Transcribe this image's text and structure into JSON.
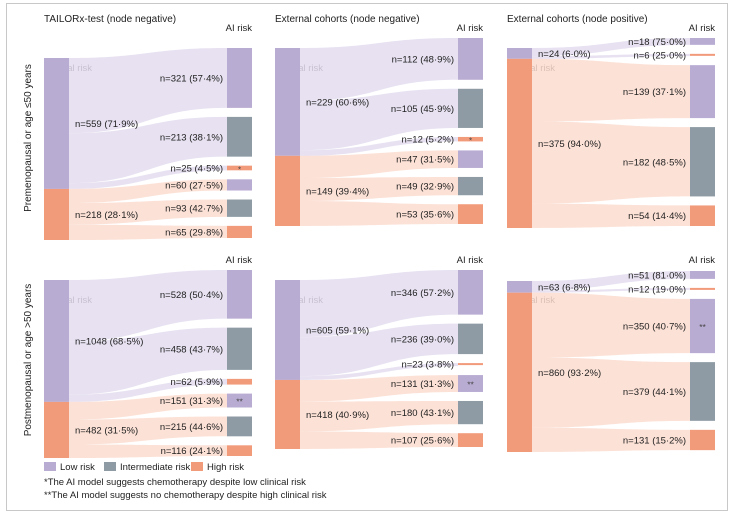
{
  "colors": {
    "low": "#b9acd3",
    "intermediate": "#8e9ba4",
    "high": "#f29b7b",
    "flow_low": "#e3dcee",
    "flow_high": "#fcdccf",
    "border": "#c8c8c8"
  },
  "labels": {
    "ai_risk": "AI risk",
    "clinical_risk": "Clinical risk",
    "row_top": "Premenopausal or age ≤50 years",
    "row_bottom": "Postmenopausal or age >50 years"
  },
  "legend": {
    "low": "Low risk",
    "intermediate": "Intermediate risk",
    "high": "High risk"
  },
  "footnotes": [
    "*The AI model suggests chemotherapy despite low clinical risk",
    "**The AI model suggests no chemotherapy despite high clinical risk"
  ],
  "chart_data": [
    {
      "type": "sankey",
      "title": "TAILORx-test (node negative)",
      "row": "Premenopausal or age ≤50 years",
      "clinical": [
        {
          "risk": "low",
          "label": "n=559 (71·9%)"
        },
        {
          "risk": "high",
          "label": "n=218 (28·1%)"
        }
      ],
      "flows": [
        {
          "from": "low",
          "to": "low",
          "n": 321,
          "label": "n=321 (57·4%)",
          "mark": ""
        },
        {
          "from": "low",
          "to": "intermediate",
          "n": 213,
          "label": "n=213 (38·1%)",
          "mark": ""
        },
        {
          "from": "low",
          "to": "high",
          "n": 25,
          "label": "n=25 (4·5%)",
          "mark": "*"
        },
        {
          "from": "high",
          "to": "low",
          "n": 60,
          "label": "n=60 (27·5%)",
          "mark": ""
        },
        {
          "from": "high",
          "to": "intermediate",
          "n": 93,
          "label": "n=93 (42·7%)",
          "mark": ""
        },
        {
          "from": "high",
          "to": "high",
          "n": 65,
          "label": "n=65 (29·8%)",
          "mark": ""
        }
      ]
    },
    {
      "type": "sankey",
      "title": "External cohorts (node negative)",
      "row": "Premenopausal or age ≤50 years",
      "clinical": [
        {
          "risk": "low",
          "label": "n=229 (60·6%)"
        },
        {
          "risk": "high",
          "label": "n=149 (39·4%)"
        }
      ],
      "flows": [
        {
          "from": "low",
          "to": "low",
          "n": 112,
          "label": "n=112 (48·9%)",
          "mark": ""
        },
        {
          "from": "low",
          "to": "intermediate",
          "n": 105,
          "label": "n=105 (45·9%)",
          "mark": ""
        },
        {
          "from": "low",
          "to": "high",
          "n": 12,
          "label": "n=12 (5·2%)",
          "mark": "*"
        },
        {
          "from": "high",
          "to": "low",
          "n": 47,
          "label": "n=47 (31·5%)",
          "mark": ""
        },
        {
          "from": "high",
          "to": "intermediate",
          "n": 49,
          "label": "n=49 (32·9%)",
          "mark": ""
        },
        {
          "from": "high",
          "to": "high",
          "n": 53,
          "label": "n=53 (35·6%)",
          "mark": ""
        }
      ]
    },
    {
      "type": "sankey",
      "title": "External cohorts (node positive)",
      "row": "Premenopausal or age ≤50 years",
      "clinical": [
        {
          "risk": "low",
          "label": "n=24 (6·0%)"
        },
        {
          "risk": "high",
          "label": "n=375 (94·0%)"
        }
      ],
      "flows": [
        {
          "from": "low",
          "to": "low",
          "n": 18,
          "label": "n=18 (75·0%)",
          "mark": ""
        },
        {
          "from": "low",
          "to": "high",
          "n": 6,
          "label": "n=6 (25·0%)",
          "mark": ""
        },
        {
          "from": "high",
          "to": "low",
          "n": 139,
          "label": "n=139 (37·1%)",
          "mark": ""
        },
        {
          "from": "high",
          "to": "intermediate",
          "n": 182,
          "label": "n=182 (48·5%)",
          "mark": ""
        },
        {
          "from": "high",
          "to": "high",
          "n": 54,
          "label": "n=54 (14·4%)",
          "mark": ""
        }
      ]
    },
    {
      "type": "sankey",
      "title": "",
      "row": "Postmenopausal or age >50 years",
      "clinical": [
        {
          "risk": "low",
          "label": "n=1048 (68·5%)"
        },
        {
          "risk": "high",
          "label": "n=482 (31·5%)"
        }
      ],
      "flows": [
        {
          "from": "low",
          "to": "low",
          "n": 528,
          "label": "n=528 (50·4%)",
          "mark": ""
        },
        {
          "from": "low",
          "to": "intermediate",
          "n": 458,
          "label": "n=458 (43·7%)",
          "mark": ""
        },
        {
          "from": "low",
          "to": "high",
          "n": 62,
          "label": "n=62 (5·9%)",
          "mark": ""
        },
        {
          "from": "high",
          "to": "low",
          "n": 151,
          "label": "n=151 (31·3%)",
          "mark": "**"
        },
        {
          "from": "high",
          "to": "intermediate",
          "n": 215,
          "label": "n=215 (44·6%)",
          "mark": ""
        },
        {
          "from": "high",
          "to": "high",
          "n": 116,
          "label": "n=116 (24·1%)",
          "mark": ""
        }
      ]
    },
    {
      "type": "sankey",
      "title": "",
      "row": "Postmenopausal or age >50 years",
      "clinical": [
        {
          "risk": "low",
          "label": "n=605 (59·1%)"
        },
        {
          "risk": "high",
          "label": "n=418 (40·9%)"
        }
      ],
      "flows": [
        {
          "from": "low",
          "to": "low",
          "n": 346,
          "label": "n=346 (57·2%)",
          "mark": ""
        },
        {
          "from": "low",
          "to": "intermediate",
          "n": 236,
          "label": "n=236 (39·0%)",
          "mark": ""
        },
        {
          "from": "low",
          "to": "high",
          "n": 23,
          "label": "n=23 (3·8%)",
          "mark": ""
        },
        {
          "from": "high",
          "to": "low",
          "n": 131,
          "label": "n=131 (31·3%)",
          "mark": "**"
        },
        {
          "from": "high",
          "to": "intermediate",
          "n": 180,
          "label": "n=180 (43·1%)",
          "mark": ""
        },
        {
          "from": "high",
          "to": "high",
          "n": 107,
          "label": "n=107 (25·6%)",
          "mark": ""
        }
      ]
    },
    {
      "type": "sankey",
      "title": "",
      "row": "Postmenopausal or age >50 years",
      "clinical": [
        {
          "risk": "low",
          "label": "n=63 (6·8%)"
        },
        {
          "risk": "high",
          "label": "n=860 (93·2%)"
        }
      ],
      "flows": [
        {
          "from": "low",
          "to": "low",
          "n": 51,
          "label": "n=51 (81·0%)",
          "mark": ""
        },
        {
          "from": "low",
          "to": "high",
          "n": 12,
          "label": "n=12 (19·0%)",
          "mark": ""
        },
        {
          "from": "high",
          "to": "low",
          "n": 350,
          "label": "n=350 (40·7%)",
          "mark": "**"
        },
        {
          "from": "high",
          "to": "intermediate",
          "n": 379,
          "label": "n=379 (44·1%)",
          "mark": ""
        },
        {
          "from": "high",
          "to": "high",
          "n": 131,
          "label": "n=131 (15·2%)",
          "mark": ""
        }
      ]
    }
  ]
}
